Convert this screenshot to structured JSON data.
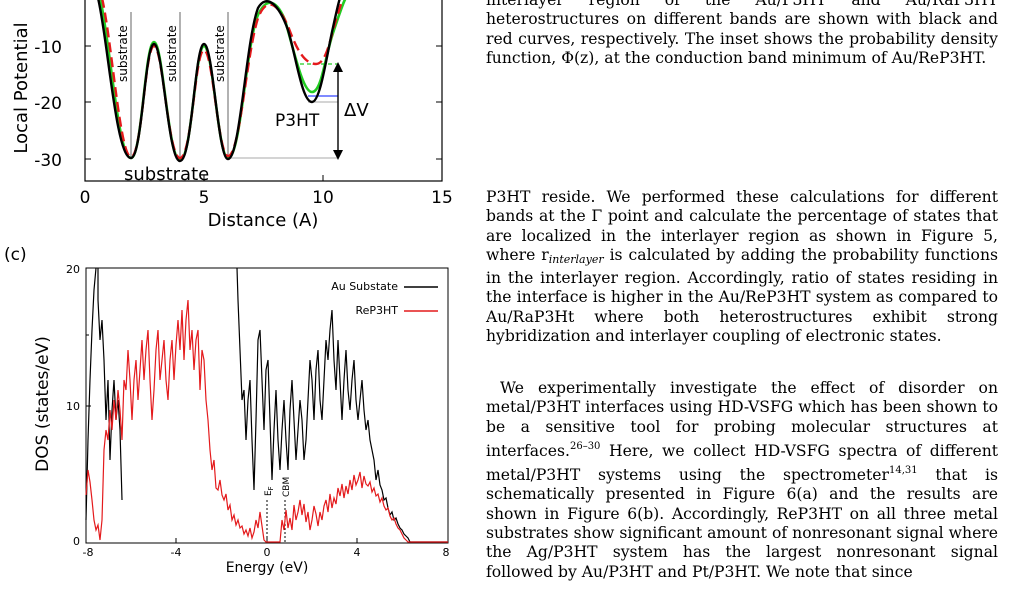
{
  "figure": {
    "panel_c_label": "(c)",
    "top_plot": {
      "ylabel": "Local Potential",
      "xlabel": "Distance (A)",
      "x_ticks": [
        "0",
        "5",
        "10",
        "15"
      ],
      "y_ticks": [
        "-10",
        "-20",
        "-30"
      ],
      "label_substrate_big": "substrate",
      "label_substrate_small": "substrate",
      "label_p3ht": "P3HT",
      "label_delta_v": "ΔV",
      "series_colors": {
        "black": "#000000",
        "red": "#e41a1c",
        "green": "#22cc22",
        "blue": "#3344ff"
      }
    },
    "dos_plot": {
      "ylabel": "DOS (states/eV)",
      "xlabel": "Energy (eV)",
      "x_ticks": [
        "-8",
        "-4",
        "0",
        "4",
        "8"
      ],
      "y_ticks": [
        "0",
        "10",
        "20"
      ],
      "legend_au": "Au Substate",
      "legend_re": "ReP3HT",
      "marker_ef": "E",
      "marker_ef_sub": "F",
      "marker_cbm": "CBM",
      "au_color": "#000000",
      "re_color": "#e41a1c"
    }
  },
  "text": {
    "caption": "interlayer region of the Au/P3HT and Au/RaP3HT heterostructures on different bands are shown with black and red curves, respectively. The inset shows the probability density function, Φ(z), at the conduction band minimum of Au/ReP3HT.",
    "p1_a": "P3HT reside. We performed these calculations for different bands at the Γ point and calculate the percentage of states that are localized in the interlayer region as shown in Figure 5, where r",
    "p1_sub": "interlayer",
    "p1_b": " is calculated by adding the probability functions in the interlayer region. Accordingly, ratio of states residing in the interface is higher in the Au/ReP3HT system as compared to Au/RaP3Ht where both heterostructures exhibit strong hybridization and interlayer coupling of electronic states.",
    "p2_a": "We experimentally investigate the effect of disorder on metal/P3HT interfaces using HD-VSFG which has been shown to be a sensitive tool for probing molecular structures at interfaces.",
    "p2_ref1": "26–30",
    "p2_b": " Here, we collect HD-VSFG spectra of different metal/P3HT systems using the spectrometer",
    "p2_ref2": "14,31",
    "p2_c": " that is schematically presented in Figure 6(a) and the results are shown in Figure 6(b). Accordingly, ReP3HT on all three metal substrates show significant amount of nonresonant signal where the Ag/P3HT system has the largest nonresonant signal followed by Au/P3HT and Pt/P3HT. We note that since"
  }
}
